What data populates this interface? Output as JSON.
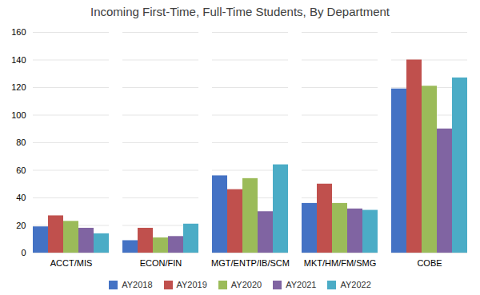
{
  "chart_data": {
    "type": "bar",
    "title": "Incoming First-Time, Full-Time Students, By Department",
    "categories": [
      "ACCT/MIS",
      "ECON/FIN",
      "MGT/ENTP/IB/SCM",
      "MKT/HM/FM/SMG",
      "COBE"
    ],
    "series": [
      {
        "name": "AY2018",
        "color": "#4472C4",
        "values": [
          19,
          9,
          56,
          36,
          119
        ]
      },
      {
        "name": "AY2019",
        "color": "#C0504D",
        "values": [
          27,
          18,
          46,
          50,
          140
        ]
      },
      {
        "name": "AY2020",
        "color": "#9BBB59",
        "values": [
          23,
          11,
          54,
          36,
          121
        ]
      },
      {
        "name": "AY2021",
        "color": "#8064A2",
        "values": [
          18,
          12,
          30,
          32,
          90
        ]
      },
      {
        "name": "AY2022",
        "color": "#4BACC6",
        "values": [
          14,
          21,
          64,
          31,
          127
        ]
      }
    ],
    "ylim": [
      0,
      160
    ],
    "yticks": [
      0,
      20,
      40,
      60,
      80,
      100,
      120,
      140,
      160
    ],
    "grid": true,
    "legend": "bottom"
  }
}
